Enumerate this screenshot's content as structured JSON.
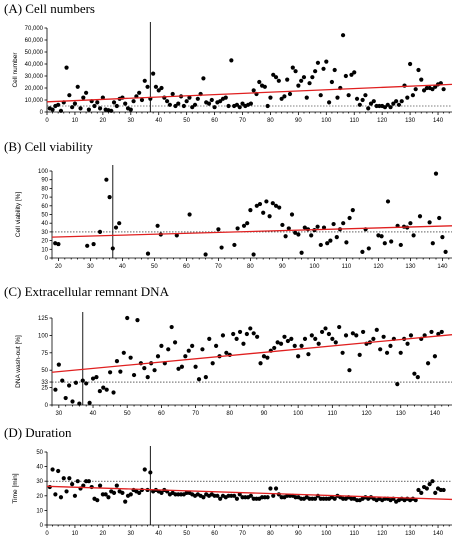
{
  "chart_data": [
    {
      "type": "scatter",
      "title": "(A) Cell numbers",
      "xlabel": "",
      "ylabel": "Cell number",
      "xlim": [
        0,
        145
      ],
      "ylim": [
        0,
        70000
      ],
      "xticks": [
        0,
        10,
        20,
        30,
        40,
        50,
        60,
        70,
        80,
        90,
        100,
        110,
        120,
        130,
        140
      ],
      "yticks": [
        0,
        10000,
        20000,
        30000,
        40000,
        50000,
        60000,
        70000
      ],
      "ytick_labels": [
        "0",
        "10,000",
        "20,000",
        "30,000",
        "40,000",
        "50,000",
        "60,000",
        "70,000"
      ],
      "reference_y": 5000,
      "vertical_marker_x": 37,
      "trend": {
        "x": [
          0,
          145
        ],
        "y": [
          8500,
          23000
        ]
      },
      "x": [
        1,
        2,
        3,
        4,
        5,
        6,
        7,
        8,
        9,
        10,
        11,
        12,
        13,
        14,
        15,
        16,
        17,
        18,
        19,
        20,
        21,
        22,
        23,
        24,
        25,
        26,
        27,
        28,
        29,
        30,
        31,
        32,
        33,
        34,
        35,
        36,
        37,
        38,
        39,
        40,
        41,
        42,
        43,
        44,
        45,
        46,
        47,
        48,
        49,
        50,
        51,
        52,
        53,
        54,
        55,
        56,
        57,
        58,
        59,
        60,
        61,
        62,
        63,
        64,
        65,
        66,
        67,
        68,
        69,
        70,
        71,
        72,
        73,
        74,
        75,
        76,
        77,
        78,
        79,
        80,
        81,
        82,
        83,
        84,
        85,
        86,
        87,
        88,
        89,
        90,
        91,
        92,
        93,
        94,
        95,
        96,
        97,
        98,
        99,
        100,
        101,
        102,
        103,
        104,
        105,
        106,
        107,
        108,
        109,
        110,
        111,
        112,
        113,
        114,
        115,
        116,
        117,
        118,
        119,
        120,
        121,
        122,
        123,
        124,
        125,
        126,
        127,
        128,
        129,
        130,
        131,
        132,
        133,
        134,
        135,
        136,
        137,
        138,
        139,
        140,
        141,
        142
      ],
      "y": [
        3000,
        2000,
        5000,
        6000,
        1000,
        8000,
        37000,
        14000,
        4000,
        7000,
        21000,
        3000,
        12000,
        16000,
        2000,
        9000,
        5000,
        8000,
        3000,
        12000,
        2000,
        1500,
        1000,
        8000,
        5000,
        11000,
        12000,
        7000,
        3000,
        2000,
        9000,
        13000,
        16000,
        10000,
        26000,
        21000,
        11000,
        32000,
        21000,
        18000,
        20000,
        12000,
        9000,
        6000,
        15000,
        5000,
        7000,
        13000,
        5000,
        9000,
        12000,
        4000,
        6000,
        11000,
        15000,
        28000,
        8000,
        7000,
        10000,
        4000,
        8000,
        9000,
        11000,
        12000,
        5000,
        43000,
        5000,
        6000,
        4000,
        7000,
        5000,
        6000,
        7000,
        18000,
        15000,
        25000,
        22000,
        21000,
        5000,
        12000,
        31000,
        29000,
        26000,
        11000,
        13000,
        27000,
        15000,
        37000,
        34000,
        22000,
        26000,
        29000,
        12000,
        24000,
        29000,
        34000,
        41000,
        14000,
        36000,
        42000,
        8000,
        25000,
        35000,
        12000,
        20000,
        64000,
        30000,
        14000,
        31000,
        33000,
        11000,
        6000,
        10000,
        14000,
        3000,
        7000,
        9000,
        5000,
        5000,
        5000,
        4000,
        6000,
        4000,
        7000,
        9000,
        6000,
        9000,
        22000,
        12000,
        40000,
        14000,
        19000,
        35000,
        27000,
        18000,
        20000,
        20000,
        19000,
        21000,
        23000,
        24000,
        19000
      ]
    },
    {
      "type": "scatter",
      "title": "(B) Cell viability",
      "xlabel": "",
      "ylabel": "Cell viability [%]",
      "xlim": [
        18,
        143
      ],
      "ylim": [
        0,
        100
      ],
      "xticks": [
        20,
        30,
        40,
        50,
        60,
        70,
        80,
        90,
        100,
        110,
        120,
        130,
        140
      ],
      "yticks": [
        0,
        10,
        20,
        30,
        40,
        50,
        60,
        70,
        80,
        90,
        100
      ],
      "ytick_labels": [
        "0",
        "10",
        "20",
        "30",
        "40",
        "50",
        "60",
        "70",
        "80",
        "90",
        "100"
      ],
      "reference_y": 30,
      "vertical_marker_x": 37,
      "trend": {
        "x": [
          18,
          143
        ],
        "y": [
          24,
          37
        ]
      },
      "x": [
        19,
        20,
        29,
        31,
        33,
        35,
        36,
        37,
        38,
        39,
        48,
        51,
        52,
        57,
        61,
        66,
        70,
        71,
        75,
        76,
        78,
        79,
        80,
        81,
        82,
        83,
        84,
        85,
        86,
        87,
        88,
        89,
        90,
        91,
        92,
        93,
        94,
        95,
        96,
        97,
        98,
        99,
        100,
        101,
        102,
        103,
        104,
        105,
        106,
        107,
        108,
        109,
        110,
        111,
        112,
        115,
        116,
        117,
        120,
        121,
        122,
        123,
        124,
        126,
        127,
        128,
        129,
        130,
        131,
        133,
        136,
        137,
        138,
        139,
        140,
        141
      ],
      "y": [
        17,
        16,
        14,
        16,
        30,
        90,
        70,
        11,
        35,
        40,
        5,
        37,
        27,
        26,
        50,
        4,
        33,
        12,
        15,
        34,
        37,
        40,
        55,
        4,
        60,
        62,
        52,
        65,
        48,
        63,
        60,
        58,
        38,
        25,
        34,
        50,
        29,
        27,
        6,
        35,
        33,
        26,
        32,
        36,
        15,
        35,
        17,
        20,
        39,
        24,
        33,
        40,
        18,
        46,
        55,
        7,
        33,
        11,
        26,
        25,
        17,
        65,
        19,
        37,
        15,
        36,
        35,
        40,
        26,
        48,
        41,
        17,
        97,
        46,
        24,
        7
      ]
    },
    {
      "type": "scatter",
      "title": "(C) Extracellular remnant DNA",
      "xlabel": "",
      "ylabel": "DNA wash-out [%]",
      "xlim": [
        28,
        145
      ],
      "ylim": [
        0,
        125
      ],
      "xticks": [
        30,
        40,
        50,
        60,
        70,
        80,
        90,
        100,
        110,
        120,
        130,
        140
      ],
      "yticks": [
        0,
        25,
        33,
        50,
        75,
        100,
        125
      ],
      "ytick_labels": [
        "0",
        "25",
        "33",
        "50",
        "75",
        "100",
        "125"
      ],
      "reference_y": 33,
      "vertical_marker_x": 37,
      "trend": {
        "x": [
          28,
          145
        ],
        "y": [
          47,
          101
        ]
      },
      "x": [
        29,
        30,
        31,
        32,
        33,
        34,
        35,
        36,
        37,
        38,
        39,
        40,
        41,
        42,
        43,
        44,
        45,
        46,
        47,
        48,
        49,
        50,
        51,
        52,
        53,
        54,
        55,
        56,
        57,
        58,
        59,
        60,
        61,
        62,
        63,
        64,
        65,
        66,
        67,
        68,
        69,
        70,
        71,
        72,
        73,
        74,
        75,
        76,
        77,
        78,
        79,
        80,
        81,
        82,
        83,
        84,
        85,
        86,
        87,
        88,
        89,
        90,
        91,
        92,
        93,
        94,
        95,
        96,
        97,
        98,
        99,
        100,
        101,
        102,
        103,
        104,
        105,
        106,
        107,
        108,
        109,
        110,
        111,
        112,
        113,
        114,
        115,
        116,
        117,
        118,
        119,
        120,
        121,
        122,
        123,
        124,
        125,
        126,
        127,
        128,
        129,
        130,
        131,
        132,
        133,
        134,
        135,
        136,
        137,
        138,
        139,
        140,
        141,
        142
      ],
      "y": [
        22,
        58,
        35,
        10,
        28,
        5,
        32,
        2,
        35,
        31,
        3,
        38,
        40,
        20,
        25,
        22,
        47,
        18,
        63,
        48,
        75,
        125,
        68,
        43,
        122,
        60,
        53,
        40,
        60,
        50,
        70,
        85,
        60,
        80,
        112,
        90,
        52,
        55,
        70,
        78,
        85,
        55,
        37,
        80,
        40,
        95,
        60,
        85,
        70,
        100,
        75,
        72,
        102,
        95,
        105,
        88,
        102,
        110,
        103,
        98,
        60,
        70,
        68,
        78,
        82,
        90,
        88,
        98,
        92,
        95,
        85,
        70,
        85,
        95,
        73,
        100,
        95,
        88,
        105,
        110,
        102,
        95,
        90,
        112,
        75,
        100,
        50,
        103,
        100,
        72,
        105,
        88,
        90,
        95,
        108,
        80,
        98,
        75,
        85,
        95,
        30,
        75,
        95,
        88,
        100,
        45,
        40,
        95,
        100,
        60,
        105,
        70,
        102,
        105
      ]
    },
    {
      "type": "scatter",
      "title": "(D) Duration",
      "xlabel": "",
      "ylabel": "Time [min]",
      "xlim": [
        0,
        145
      ],
      "ylim": [
        0,
        50
      ],
      "xticks": [
        0,
        10,
        20,
        30,
        40,
        50,
        60,
        70,
        80,
        90,
        100,
        110,
        120,
        130,
        140
      ],
      "yticks": [
        0,
        10,
        20,
        30,
        40,
        50
      ],
      "ytick_labels": [
        "0",
        "10",
        "20",
        "30",
        "40",
        "50"
      ],
      "reference_y": 30,
      "vertical_marker_x": 37,
      "trend": {
        "x": [
          0,
          145
        ],
        "y": [
          26.5,
          17.5
        ]
      },
      "x": [
        1,
        2,
        3,
        4,
        5,
        6,
        7,
        8,
        9,
        10,
        11,
        12,
        13,
        14,
        15,
        16,
        17,
        18,
        19,
        20,
        21,
        22,
        23,
        24,
        25,
        26,
        27,
        28,
        29,
        30,
        31,
        32,
        33,
        34,
        35,
        36,
        37,
        38,
        39,
        40,
        41,
        42,
        43,
        44,
        45,
        46,
        47,
        48,
        49,
        50,
        51,
        52,
        53,
        54,
        55,
        56,
        57,
        58,
        59,
        60,
        61,
        62,
        63,
        64,
        65,
        66,
        67,
        68,
        69,
        70,
        71,
        72,
        73,
        74,
        75,
        76,
        77,
        78,
        79,
        80,
        81,
        82,
        83,
        84,
        85,
        86,
        87,
        88,
        89,
        90,
        91,
        92,
        93,
        94,
        95,
        96,
        97,
        98,
        99,
        100,
        101,
        102,
        103,
        104,
        105,
        106,
        107,
        108,
        109,
        110,
        111,
        112,
        113,
        114,
        115,
        116,
        117,
        118,
        119,
        120,
        121,
        122,
        123,
        124,
        125,
        126,
        127,
        128,
        129,
        130,
        131,
        132,
        133,
        134,
        135,
        136,
        137,
        138,
        139,
        140,
        141,
        142
      ],
      "y": [
        26,
        38,
        21,
        37,
        19,
        32,
        23,
        32,
        28,
        20,
        30,
        25,
        27,
        30,
        30,
        26,
        18,
        17,
        27,
        21,
        21,
        19,
        23,
        22,
        27,
        23,
        22,
        16,
        20,
        21,
        24,
        23,
        22,
        24,
        38,
        24,
        36,
        23,
        24,
        23,
        22,
        24,
        23,
        21,
        22,
        21,
        21,
        21,
        21,
        22,
        22,
        21,
        20,
        21,
        20,
        19,
        21,
        20,
        21,
        20,
        20,
        18,
        20,
        19,
        20,
        20,
        20,
        18,
        21,
        19,
        19,
        19,
        20,
        18,
        18,
        18,
        19,
        19,
        19,
        25,
        20,
        25,
        21,
        19,
        19,
        20,
        20,
        20,
        19,
        19,
        18,
        18,
        19,
        18,
        18,
        18,
        20,
        18,
        18,
        18,
        18,
        19,
        18,
        20,
        19,
        18,
        18,
        19,
        18,
        18,
        17,
        17,
        18,
        19,
        18,
        19,
        18,
        17,
        18,
        17,
        18,
        18,
        17,
        18,
        16,
        17,
        18,
        17,
        18,
        17,
        18,
        17,
        24,
        22,
        26,
        25,
        28,
        30,
        22,
        25,
        24,
        24
      ]
    }
  ]
}
